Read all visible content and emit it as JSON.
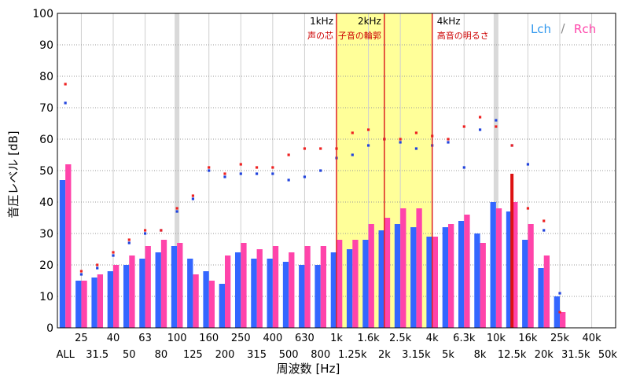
{
  "chart_data": {
    "type": "bar",
    "title": "",
    "xlabel": "周波数 [Hz]",
    "ylabel": "音圧レベル [dB]",
    "ylim": [
      0,
      100
    ],
    "y_ticks": [
      0,
      10,
      20,
      30,
      40,
      50,
      60,
      70,
      80,
      90,
      100
    ],
    "grid": true,
    "legend": {
      "placement": "top-right",
      "separator": "/",
      "entries": [
        "Lch",
        "Rch"
      ]
    },
    "categories": [
      "ALL",
      "25",
      "31.5",
      "40",
      "50",
      "63",
      "80",
      "100",
      "125",
      "160",
      "200",
      "250",
      "315",
      "400",
      "500",
      "630",
      "800",
      "1k",
      "1.25k",
      "1.6k",
      "2k",
      "2.5k",
      "3.15k",
      "4k",
      "5k",
      "6.3k",
      "8k",
      "10k",
      "12.5k",
      "16k",
      "20k",
      "25k",
      "31.5k",
      "40k",
      "50k"
    ],
    "tick_labels_top": [
      "25",
      "40",
      "63",
      "100",
      "160",
      "250",
      "400",
      "630",
      "1k",
      "1.6k",
      "2.5k",
      "4k",
      "6.3k",
      "10k",
      "16k",
      "25k",
      "40k"
    ],
    "tick_labels_bottom": [
      "ALL",
      "31.5",
      "50",
      "80",
      "125",
      "200",
      "315",
      "500",
      "800",
      "1.25k",
      "2k",
      "3.15k",
      "5k",
      "8k",
      "12.5k",
      "20k",
      "31.5k",
      "50k"
    ],
    "series": [
      {
        "name": "Lch",
        "color": "#3366ff",
        "bars": [
          47,
          15,
          16,
          18,
          20,
          22,
          24,
          26,
          22,
          18,
          14,
          24,
          22,
          22,
          21,
          20,
          20,
          24,
          25,
          28,
          31,
          33,
          32,
          29,
          32,
          34,
          30,
          40,
          37,
          28,
          19,
          10,
          0,
          0,
          0
        ],
        "peaks": [
          71.5,
          17,
          19,
          23,
          27,
          30,
          31,
          37,
          41,
          50,
          48,
          49,
          49,
          49,
          47,
          48,
          50,
          54,
          55,
          58,
          60,
          59,
          57,
          58,
          59,
          51,
          63,
          66,
          58,
          52,
          31,
          11,
          0,
          0,
          0
        ]
      },
      {
        "name": "Rch",
        "color": "#ff44aa",
        "bars": [
          52,
          15,
          17,
          20,
          23,
          26,
          28,
          27,
          17,
          15,
          23,
          27,
          25,
          26,
          24,
          26,
          26,
          28,
          28,
          33,
          35,
          38,
          38,
          29,
          33,
          36,
          27,
          38,
          40,
          33,
          23,
          5,
          0,
          0,
          0
        ],
        "peaks": [
          77.5,
          18,
          20,
          24,
          28,
          31,
          31,
          38,
          42,
          51,
          49,
          52,
          51,
          51,
          55,
          57,
          57,
          57,
          62,
          63,
          60,
          60,
          62,
          61,
          60,
          64,
          67,
          64,
          58,
          38,
          34,
          5,
          0,
          0,
          0
        ]
      }
    ],
    "band_highlight": {
      "from_category": "1k",
      "to_category": "4k",
      "color": "#ffff99"
    },
    "annotations": [
      {
        "freq_label": "1kHz",
        "caption": "声の芯",
        "category": "1k"
      },
      {
        "freq_label": "2kHz",
        "caption": "子音の輪郭",
        "category": "2k"
      },
      {
        "freq_label": "4kHz",
        "caption": "高音の明るさ",
        "category": "4k"
      }
    ],
    "marker": {
      "category": "12.5k",
      "value": 49,
      "color": "#dd1111"
    },
    "colors": {
      "annotation_line": "#dd2222",
      "annotation_caption": "#cc0000",
      "lch": "#3399ee",
      "rch": "#ff44aa"
    }
  }
}
